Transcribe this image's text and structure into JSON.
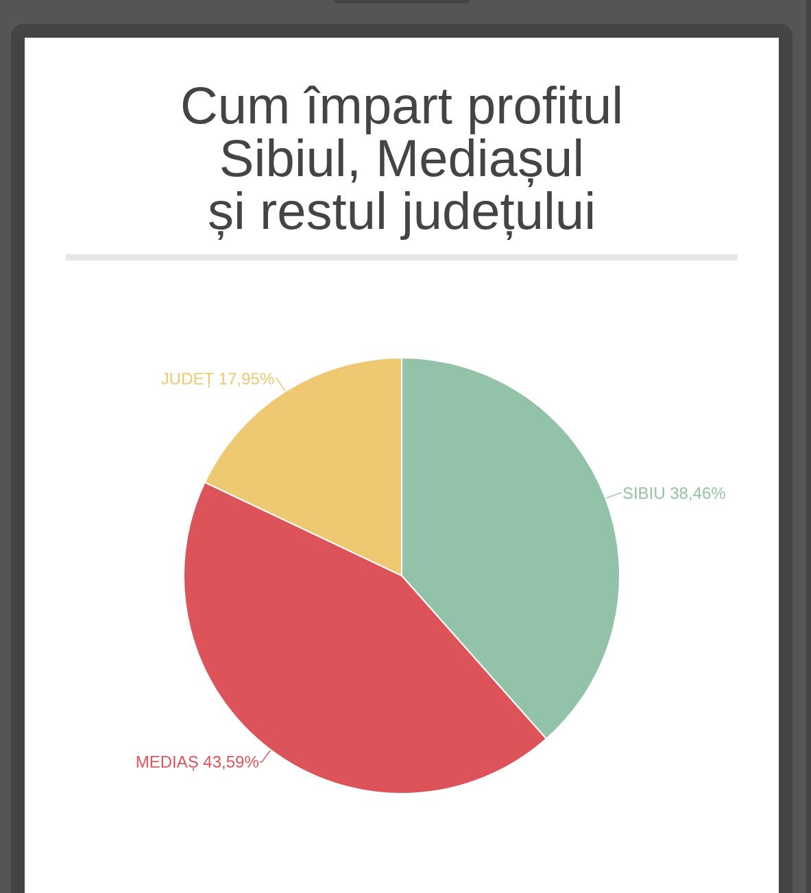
{
  "chart_data": {
    "type": "pie",
    "title": "Cum împart profitul\nSibiul, Mediașul\nși restul județului",
    "categories": [
      "SIBIU",
      "MEDIAȘ",
      "JUDEȚ"
    ],
    "values": [
      38.46,
      43.59,
      17.95
    ],
    "colors": [
      "#92c3a8",
      "#dc545a",
      "#eec971"
    ],
    "value_labels": [
      "38,46%",
      "43,59%",
      "17,95%"
    ]
  }
}
